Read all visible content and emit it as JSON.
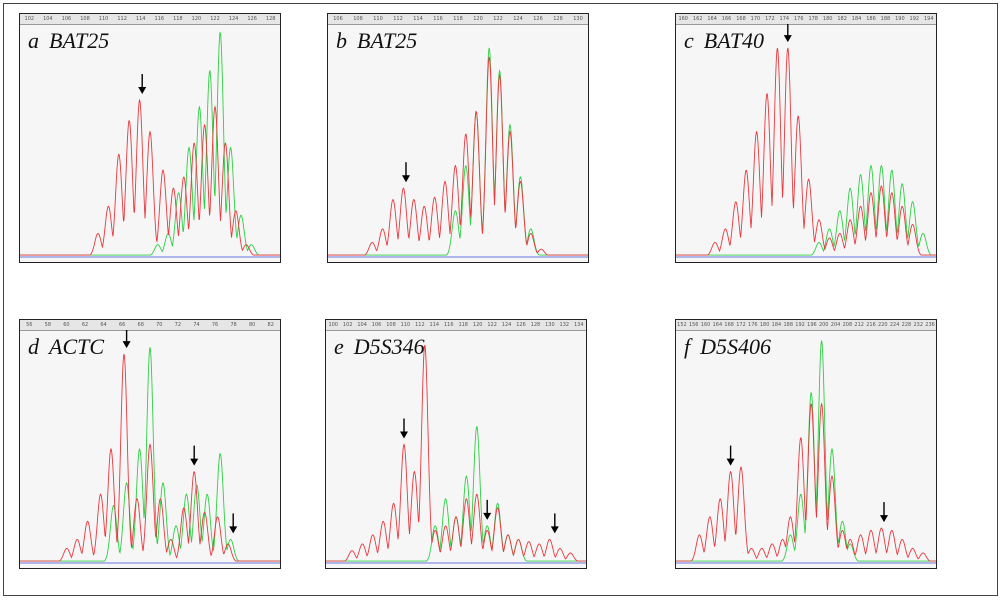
{
  "colors": {
    "red": "#e8393f",
    "green": "#2fcf45",
    "blue": "#6677dd",
    "arrow": "#000000"
  },
  "chart_data": [
    {
      "type": "line",
      "panel": "a",
      "marker": "BAT25",
      "ticks": [
        "102",
        "104",
        "106",
        "108",
        "110",
        "112",
        "114",
        "116",
        "118",
        "120",
        "122",
        "124",
        "126",
        "128"
      ],
      "red": [
        [
          0.3,
          0.1
        ],
        [
          0.34,
          0.22
        ],
        [
          0.38,
          0.45
        ],
        [
          0.42,
          0.6
        ],
        [
          0.46,
          0.69
        ],
        [
          0.5,
          0.55
        ],
        [
          0.55,
          0.38
        ],
        [
          0.59,
          0.3
        ],
        [
          0.63,
          0.35
        ],
        [
          0.67,
          0.5
        ],
        [
          0.71,
          0.58
        ],
        [
          0.75,
          0.66
        ],
        [
          0.79,
          0.5
        ],
        [
          0.83,
          0.2
        ],
        [
          0.87,
          0.05
        ]
      ],
      "green": [
        [
          0.53,
          0.05
        ],
        [
          0.57,
          0.1
        ],
        [
          0.61,
          0.28
        ],
        [
          0.65,
          0.48
        ],
        [
          0.69,
          0.66
        ],
        [
          0.73,
          0.82
        ],
        [
          0.77,
          0.99
        ],
        [
          0.81,
          0.48
        ],
        [
          0.85,
          0.18
        ],
        [
          0.89,
          0.05
        ]
      ],
      "arrows": [
        0.47
      ]
    },
    {
      "type": "line",
      "panel": "b",
      "marker": "BAT25",
      "ticks": [
        "106",
        "108",
        "110",
        "112",
        "114",
        "116",
        "118",
        "120",
        "122",
        "124",
        "126",
        "128",
        "130"
      ],
      "red": [
        [
          0.17,
          0.06
        ],
        [
          0.21,
          0.12
        ],
        [
          0.25,
          0.25
        ],
        [
          0.29,
          0.3
        ],
        [
          0.33,
          0.25
        ],
        [
          0.37,
          0.22
        ],
        [
          0.41,
          0.26
        ],
        [
          0.45,
          0.33
        ],
        [
          0.49,
          0.4
        ],
        [
          0.53,
          0.54
        ],
        [
          0.57,
          0.64
        ],
        [
          0.62,
          0.88
        ],
        [
          0.66,
          0.8
        ],
        [
          0.7,
          0.55
        ],
        [
          0.74,
          0.33
        ],
        [
          0.78,
          0.1
        ],
        [
          0.82,
          0.03
        ]
      ],
      "green": [
        [
          0.49,
          0.2
        ],
        [
          0.53,
          0.4
        ],
        [
          0.57,
          0.64
        ],
        [
          0.62,
          0.92
        ],
        [
          0.66,
          0.82
        ],
        [
          0.7,
          0.58
        ],
        [
          0.74,
          0.35
        ],
        [
          0.78,
          0.12
        ]
      ],
      "arrows": [
        0.3
      ]
    },
    {
      "type": "line",
      "panel": "c",
      "marker": "BAT40",
      "ticks": [
        "160",
        "162",
        "164",
        "166",
        "168",
        "170",
        "172",
        "174",
        "176",
        "178",
        "180",
        "182",
        "184",
        "186",
        "188",
        "190",
        "192",
        "194"
      ],
      "red": [
        [
          0.15,
          0.06
        ],
        [
          0.19,
          0.12
        ],
        [
          0.23,
          0.24
        ],
        [
          0.27,
          0.38
        ],
        [
          0.31,
          0.55
        ],
        [
          0.35,
          0.72
        ],
        [
          0.39,
          0.92
        ],
        [
          0.43,
          0.92
        ],
        [
          0.47,
          0.62
        ],
        [
          0.51,
          0.34
        ],
        [
          0.55,
          0.16
        ],
        [
          0.59,
          0.08
        ],
        [
          0.63,
          0.1
        ],
        [
          0.67,
          0.16
        ],
        [
          0.71,
          0.22
        ],
        [
          0.75,
          0.28
        ],
        [
          0.79,
          0.31
        ],
        [
          0.83,
          0.28
        ],
        [
          0.87,
          0.22
        ],
        [
          0.91,
          0.14
        ]
      ],
      "green": [
        [
          0.55,
          0.06
        ],
        [
          0.59,
          0.12
        ],
        [
          0.63,
          0.2
        ],
        [
          0.67,
          0.3
        ],
        [
          0.71,
          0.36
        ],
        [
          0.75,
          0.4
        ],
        [
          0.79,
          0.4
        ],
        [
          0.83,
          0.38
        ],
        [
          0.87,
          0.32
        ],
        [
          0.91,
          0.24
        ],
        [
          0.95,
          0.1
        ]
      ],
      "arrows": [
        0.43
      ]
    },
    {
      "type": "line",
      "panel": "d",
      "marker": "ACTC",
      "ticks": [
        "56",
        "58",
        "60",
        "62",
        "64",
        "66",
        "68",
        "70",
        "72",
        "74",
        "76",
        "78",
        "80",
        "82"
      ],
      "red": [
        [
          0.18,
          0.06
        ],
        [
          0.22,
          0.1
        ],
        [
          0.26,
          0.18
        ],
        [
          0.31,
          0.3
        ],
        [
          0.35,
          0.5
        ],
        [
          0.4,
          0.92
        ],
        [
          0.45,
          0.28
        ],
        [
          0.5,
          0.52
        ],
        [
          0.54,
          0.28
        ],
        [
          0.58,
          0.1
        ],
        [
          0.63,
          0.24
        ],
        [
          0.67,
          0.4
        ],
        [
          0.71,
          0.22
        ],
        [
          0.76,
          0.2
        ],
        [
          0.8,
          0.08
        ]
      ],
      "green": [
        [
          0.36,
          0.25
        ],
        [
          0.41,
          0.35
        ],
        [
          0.46,
          0.5
        ],
        [
          0.5,
          0.95
        ],
        [
          0.55,
          0.35
        ],
        [
          0.6,
          0.16
        ],
        [
          0.64,
          0.3
        ],
        [
          0.68,
          0.34
        ],
        [
          0.72,
          0.3
        ],
        [
          0.77,
          0.48
        ],
        [
          0.81,
          0.1
        ]
      ],
      "arrows": [
        0.41,
        0.67,
        0.82
      ]
    },
    {
      "type": "line",
      "panel": "e",
      "marker": "D5S346",
      "ticks": [
        "100",
        "102",
        "104",
        "106",
        "108",
        "110",
        "112",
        "114",
        "116",
        "118",
        "120",
        "122",
        "124",
        "126",
        "128",
        "130",
        "132",
        "134"
      ],
      "red": [
        [
          0.1,
          0.05
        ],
        [
          0.14,
          0.08
        ],
        [
          0.18,
          0.12
        ],
        [
          0.22,
          0.18
        ],
        [
          0.26,
          0.26
        ],
        [
          0.3,
          0.52
        ],
        [
          0.34,
          0.4
        ],
        [
          0.38,
          0.96
        ],
        [
          0.42,
          0.14
        ],
        [
          0.46,
          0.16
        ],
        [
          0.5,
          0.2
        ],
        [
          0.54,
          0.28
        ],
        [
          0.58,
          0.3
        ],
        [
          0.62,
          0.14
        ],
        [
          0.66,
          0.24
        ],
        [
          0.7,
          0.12
        ],
        [
          0.74,
          0.1
        ],
        [
          0.78,
          0.09
        ],
        [
          0.82,
          0.08
        ],
        [
          0.86,
          0.1
        ],
        [
          0.9,
          0.06
        ],
        [
          0.94,
          0.04
        ]
      ],
      "green": [
        [
          0.42,
          0.16
        ],
        [
          0.46,
          0.28
        ],
        [
          0.5,
          0.2
        ],
        [
          0.54,
          0.38
        ],
        [
          0.58,
          0.6
        ],
        [
          0.62,
          0.16
        ],
        [
          0.66,
          0.26
        ],
        [
          0.7,
          0.12
        ],
        [
          0.74,
          0.1
        ]
      ],
      "arrows": [
        0.3,
        0.62,
        0.88
      ]
    },
    {
      "type": "line",
      "panel": "f",
      "marker": "D5S406",
      "ticks": [
        "152",
        "156",
        "160",
        "164",
        "168",
        "172",
        "176",
        "180",
        "184",
        "188",
        "192",
        "196",
        "200",
        "204",
        "208",
        "212",
        "216",
        "220",
        "224",
        "228",
        "232",
        "236"
      ],
      "red": [
        [
          0.09,
          0.12
        ],
        [
          0.13,
          0.2
        ],
        [
          0.17,
          0.28
        ],
        [
          0.21,
          0.4
        ],
        [
          0.25,
          0.42
        ],
        [
          0.29,
          0.06
        ],
        [
          0.33,
          0.06
        ],
        [
          0.37,
          0.08
        ],
        [
          0.41,
          0.1
        ],
        [
          0.44,
          0.2
        ],
        [
          0.48,
          0.55
        ],
        [
          0.52,
          0.7
        ],
        [
          0.56,
          0.7
        ],
        [
          0.6,
          0.38
        ],
        [
          0.64,
          0.14
        ],
        [
          0.67,
          0.1
        ],
        [
          0.71,
          0.12
        ],
        [
          0.75,
          0.14
        ],
        [
          0.79,
          0.15
        ],
        [
          0.83,
          0.14
        ],
        [
          0.87,
          0.1
        ],
        [
          0.91,
          0.06
        ],
        [
          0.95,
          0.04
        ]
      ],
      "green": [
        [
          0.44,
          0.12
        ],
        [
          0.48,
          0.3
        ],
        [
          0.52,
          0.75
        ],
        [
          0.56,
          0.98
        ],
        [
          0.6,
          0.5
        ],
        [
          0.64,
          0.18
        ],
        [
          0.67,
          0.08
        ]
      ],
      "arrows": [
        0.21,
        0.8
      ]
    }
  ]
}
